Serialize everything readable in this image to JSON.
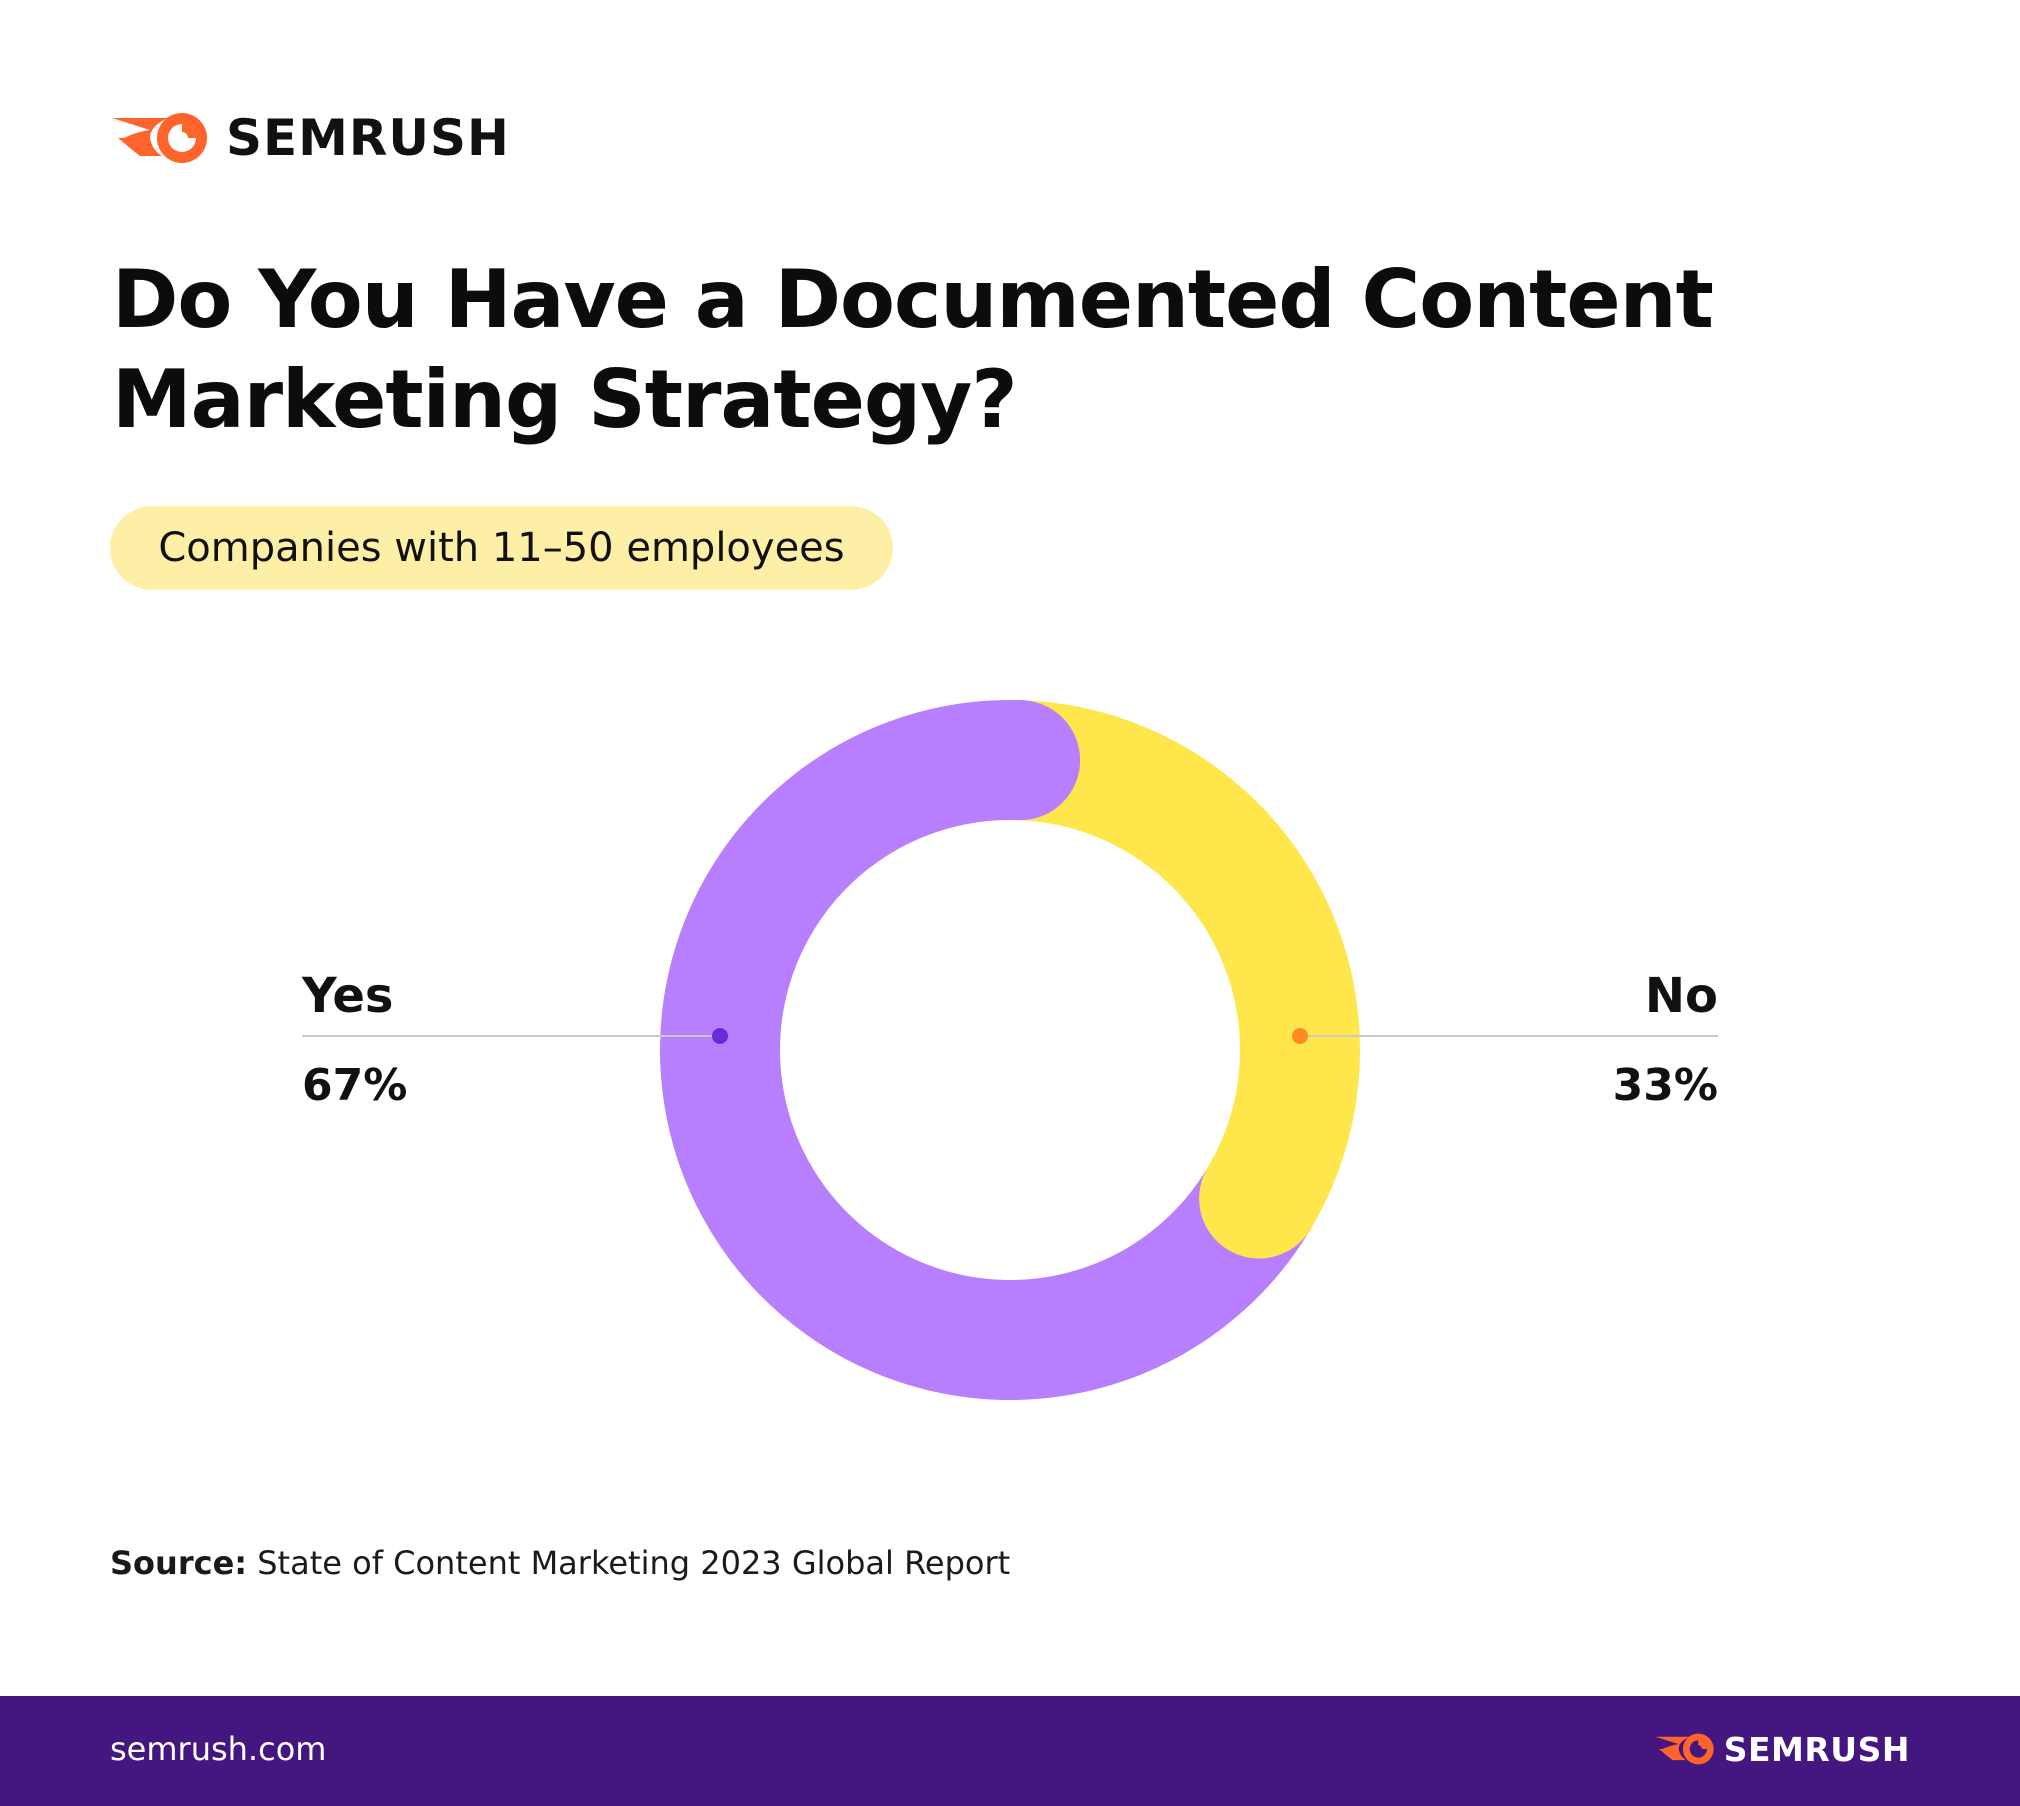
{
  "brand": {
    "name": "SEMRUSH",
    "logo_icon": "semrush-fireball-icon",
    "accent_color": "#ff642d"
  },
  "title_lines": [
    "Do You Have a Documented Content",
    "Marketing Strategy?"
  ],
  "segment_label": "Companies with 11–50 employees",
  "chart_data": {
    "type": "pie",
    "variant": "donut",
    "title": "Do You Have a Documented Content Marketing Strategy?",
    "subtitle": "Companies with 11–50 employees",
    "slices": [
      {
        "label": "Yes",
        "value": 67,
        "value_label": "67%",
        "color": "#b77ffd",
        "marker_color": "#6a2bd8"
      },
      {
        "label": "No",
        "value": 33,
        "value_label": "33%",
        "color": "#ffe64a",
        "marker_color": "#ff8a1f"
      }
    ],
    "legend": "callout-labels-left-right"
  },
  "source": {
    "prefix": "Source:",
    "text": "State of Content Marketing 2023 Global Report"
  },
  "footer": {
    "url": "semrush.com",
    "brand": "SEMRUSH",
    "background": "#43177f"
  }
}
